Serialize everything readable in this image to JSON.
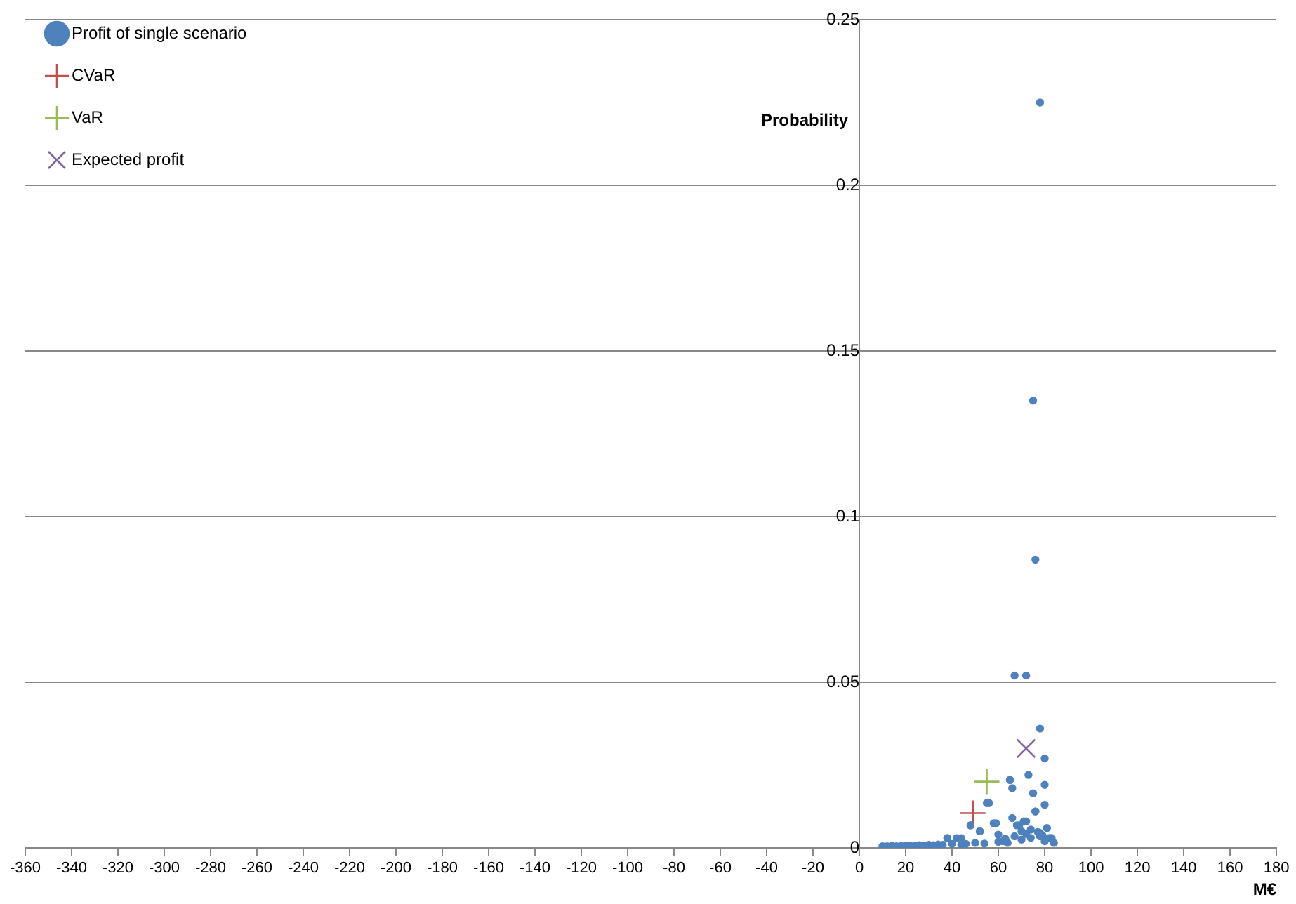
{
  "chart_data": {
    "type": "scatter",
    "xlabel": "M€",
    "ylabel": "Probability",
    "xlim": [
      -360,
      180
    ],
    "xticks": [
      -360,
      -340,
      -320,
      -300,
      -280,
      -260,
      -240,
      -220,
      -200,
      -180,
      -160,
      -140,
      -120,
      -100,
      -80,
      -60,
      -40,
      -20,
      0,
      20,
      40,
      60,
      80,
      100,
      120,
      140,
      160,
      180
    ],
    "ylim": [
      0,
      0.25
    ],
    "yticks": [
      0,
      0.05,
      0.1,
      0.15,
      0.2,
      0.25
    ],
    "grid": "y",
    "legend": "top left",
    "series": [
      {
        "name": "Profit of single scenario",
        "color": "#4f81bd",
        "marker": "circle",
        "x": [
          10,
          12,
          14,
          16,
          18,
          20,
          22,
          24,
          26,
          28,
          30,
          32,
          34,
          36,
          38,
          40,
          42,
          44,
          46,
          48,
          50,
          52,
          54,
          56,
          58,
          60,
          62,
          64,
          66,
          68,
          70,
          72,
          74,
          76,
          78,
          80,
          82,
          84,
          38,
          44,
          48,
          52,
          55,
          59,
          65,
          66,
          67,
          69,
          71,
          72,
          73,
          75,
          76,
          78,
          80,
          80,
          80,
          65,
          78,
          75,
          76,
          78,
          67,
          72,
          60,
          63,
          70,
          74,
          77,
          79,
          81,
          83
        ],
        "values": [
          0.0005,
          0.0005,
          0.0006,
          0.0005,
          0.0006,
          0.0007,
          0.0006,
          0.0007,
          0.0008,
          0.0007,
          0.0009,
          0.0008,
          0.001,
          0.0009,
          0.0029,
          0.0012,
          0.0029,
          0.001,
          0.0012,
          0.0068,
          0.0015,
          0.005,
          0.0013,
          0.0135,
          0.0074,
          0.0018,
          0.002,
          0.0015,
          0.009,
          0.0068,
          0.0025,
          0.008,
          0.003,
          0.011,
          0.0035,
          0.002,
          0.003,
          0.0015,
          0.0029,
          0.0029,
          0.0068,
          0.005,
          0.0135,
          0.0074,
          0.0205,
          0.018,
          0.052,
          0.0068,
          0.008,
          0.052,
          0.022,
          0.0165,
          0.011,
          0.036,
          0.027,
          0.019,
          0.013,
          0.0205,
          0.225,
          0.135,
          0.087,
          0.0045,
          0.0035,
          0.0042,
          0.004,
          0.0028,
          0.005,
          0.0055,
          0.0048,
          0.0038,
          0.006,
          0.003
        ]
      },
      {
        "name": "CVaR",
        "color": "#c0504d",
        "marker": "cross",
        "x": [
          49
        ],
        "values": [
          0.0105
        ]
      },
      {
        "name": "VaR",
        "color": "#9bbb59",
        "marker": "cross",
        "x": [
          55
        ],
        "values": [
          0.02
        ]
      },
      {
        "name": "Expected profit",
        "color": "#8064a2",
        "marker": "x",
        "x": [
          72
        ],
        "values": [
          0.03
        ]
      }
    ]
  }
}
